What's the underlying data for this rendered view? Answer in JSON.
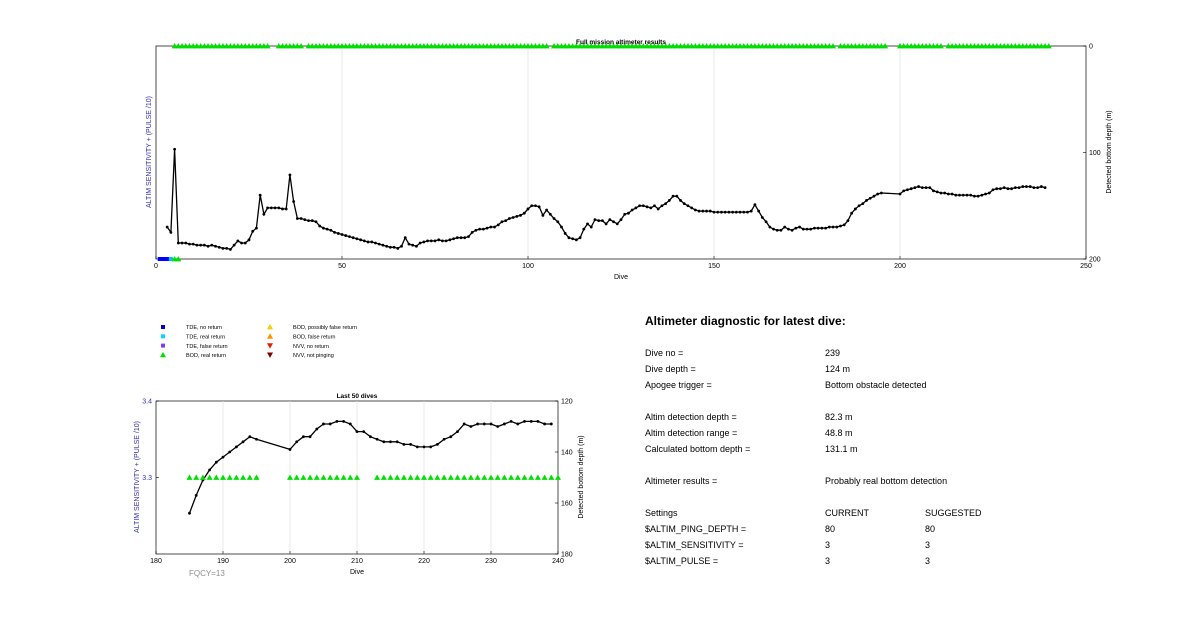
{
  "chart_data": [
    {
      "type": "line",
      "title": "Full mission altimeter results",
      "xlabel": "Dive",
      "ylabel_left": "ALTIM SENSITIVITY + (PULSE /10)",
      "ylabel_right": "Detected bottom depth (m)",
      "xlim": [
        0,
        250
      ],
      "ylim_right": [
        0,
        200
      ],
      "y_right_reversed": true,
      "xticks": [
        "0",
        "50",
        "100",
        "150",
        "200",
        "250"
      ],
      "yticks_right": [
        "0",
        "100",
        "200"
      ],
      "grid": "vertical",
      "series": [
        {
          "marker": "circle",
          "color": "#000000",
          "x": [
            3,
            4,
            5,
            6,
            7,
            8,
            9,
            10,
            11,
            12,
            13,
            14,
            15,
            16,
            17,
            18,
            19,
            20,
            21,
            22,
            23,
            24,
            25,
            26,
            27,
            28,
            29,
            30,
            31,
            32,
            33,
            34,
            35,
            36,
            37,
            38,
            39,
            40,
            41,
            42,
            43,
            44,
            45,
            46,
            47,
            48,
            49,
            50,
            51,
            52,
            53,
            54,
            55,
            56,
            57,
            58,
            59,
            60,
            61,
            62,
            63,
            64,
            65,
            66,
            67,
            68,
            69,
            70,
            71,
            72,
            73,
            74,
            75,
            76,
            77,
            78,
            79,
            80,
            81,
            82,
            83,
            84,
            85,
            86,
            87,
            88,
            89,
            90,
            91,
            92,
            93,
            94,
            95,
            96,
            97,
            98,
            99,
            100,
            101,
            102,
            103,
            104,
            105,
            106,
            107,
            108,
            109,
            110,
            111,
            112,
            113,
            114,
            115,
            116,
            117,
            118,
            119,
            120,
            121,
            122,
            123,
            124,
            125,
            126,
            127,
            128,
            129,
            130,
            131,
            132,
            133,
            134,
            135,
            136,
            137,
            138,
            139,
            140,
            141,
            142,
            143,
            144,
            145,
            146,
            147,
            148,
            149,
            150,
            151,
            152,
            153,
            154,
            155,
            156,
            157,
            158,
            159,
            160,
            161,
            162,
            163,
            164,
            165,
            166,
            167,
            168,
            169,
            170,
            171,
            172,
            173,
            174,
            175,
            176,
            177,
            178,
            179,
            180,
            181,
            182,
            183,
            184,
            185,
            186,
            187,
            188,
            189,
            190,
            191,
            192,
            193,
            194,
            195,
            200,
            201,
            202,
            203,
            204,
            205,
            206,
            207,
            208,
            209,
            210,
            211,
            212,
            213,
            214,
            215,
            216,
            217,
            218,
            219,
            220,
            221,
            222,
            223,
            224,
            225,
            226,
            227,
            228,
            229,
            230,
            231,
            232,
            233,
            234,
            235,
            236,
            237,
            238,
            239
          ],
          "y": [
            170,
            175,
            97,
            185,
            185,
            185,
            186,
            186,
            187,
            187,
            187,
            188,
            187,
            188,
            189,
            190,
            190,
            191,
            187,
            183,
            185,
            185,
            182,
            174,
            171,
            140,
            158,
            152,
            152,
            152,
            152,
            153,
            153,
            121,
            146,
            162,
            162,
            163,
            164,
            164,
            165,
            169,
            171,
            172,
            173,
            175,
            176,
            177,
            178,
            179,
            180,
            181,
            182,
            183,
            184,
            184,
            185,
            186,
            187,
            188,
            189,
            189,
            190,
            188,
            180,
            186,
            187,
            188,
            185,
            184,
            183,
            183,
            183,
            182,
            183,
            183,
            182,
            181,
            180,
            180,
            180,
            179,
            175,
            173,
            172,
            172,
            171,
            170,
            170,
            168,
            165,
            164,
            162,
            161,
            160,
            159,
            157,
            153,
            150,
            150,
            151,
            159,
            154,
            158,
            162,
            165,
            170,
            176,
            180,
            181,
            182,
            180,
            172,
            167,
            170,
            163,
            164,
            164,
            167,
            163,
            165,
            167,
            163,
            158,
            157,
            154,
            152,
            150,
            150,
            151,
            152,
            150,
            153,
            150,
            148,
            145,
            141,
            141,
            145,
            148,
            150,
            152,
            154,
            155,
            155,
            155,
            155,
            156,
            156,
            156,
            156,
            156,
            156,
            156,
            156,
            156,
            156,
            155,
            149,
            155,
            161,
            165,
            170,
            172,
            173,
            173,
            170,
            172,
            173,
            171,
            170,
            172,
            172,
            172,
            171,
            171,
            171,
            171,
            170,
            170,
            170,
            169,
            168,
            164,
            157,
            153,
            150,
            148,
            145,
            143,
            141,
            139,
            138,
            139,
            136,
            135,
            134,
            133,
            132,
            133,
            133,
            133,
            136,
            137,
            138,
            138,
            139,
            139,
            140,
            140,
            140,
            140,
            140,
            141,
            141,
            140,
            139,
            138,
            135,
            134,
            134,
            133,
            134,
            134,
            133,
            133,
            132,
            132,
            132,
            133,
            133,
            132,
            133
          ]
        }
      ],
      "markers": {
        "bod_real_return": {
          "marker": "triangle",
          "color": "#00e000",
          "y": 0,
          "x_ranges": [
            [
              5,
              30
            ],
            [
              33,
              39
            ],
            [
              41,
              105
            ],
            [
              107,
              182
            ],
            [
              184,
              196
            ],
            [
              200,
              211
            ],
            [
              213,
              240
            ]
          ]
        },
        "tde_no_return": {
          "marker": "square",
          "color": "#0000ff",
          "y": 200,
          "x": [
            1,
            2,
            3
          ]
        },
        "tde_real_return": {
          "marker": "square",
          "color": "#00c0ff",
          "y": 200,
          "x": [
            4
          ]
        },
        "bod_real_return_bottom": {
          "marker": "triangle",
          "color": "#00e000",
          "y": 200,
          "x": [
            5,
            6
          ]
        }
      }
    },
    {
      "type": "line",
      "title": "Last 50 dives",
      "xlabel": "Dive",
      "ylabel_left": "ALTIM SENSITIVITY + (PULSE /10)",
      "ylabel_right": "Detected bottom depth (m)",
      "xlim": [
        180,
        240
      ],
      "ylim_left": [
        3.2,
        3.4
      ],
      "ylim_right": [
        120,
        180
      ],
      "y_right_reversed": true,
      "xticks": [
        "180",
        "190",
        "200",
        "210",
        "220",
        "230",
        "240"
      ],
      "yticks_left": [
        "3.3",
        "3.4"
      ],
      "yticks_right": [
        "120",
        "140",
        "160",
        "180"
      ],
      "grid": "vertical",
      "annotation": "FQCY=13",
      "series": [
        {
          "marker": "circle",
          "color": "#000000",
          "x": [
            185,
            186,
            187,
            188,
            189,
            190,
            191,
            192,
            193,
            194,
            195,
            200,
            201,
            202,
            203,
            204,
            205,
            206,
            207,
            208,
            209,
            210,
            211,
            212,
            213,
            214,
            215,
            216,
            217,
            218,
            219,
            220,
            221,
            222,
            223,
            224,
            225,
            226,
            227,
            228,
            229,
            230,
            231,
            232,
            233,
            234,
            235,
            236,
            237,
            238,
            239
          ],
          "y": [
            164,
            157,
            151,
            147,
            144,
            142,
            140,
            138,
            136,
            134,
            135,
            139,
            136,
            134,
            134,
            131,
            129,
            129,
            128,
            128,
            129,
            132,
            132,
            134,
            135,
            136,
            136,
            136,
            137,
            137,
            138,
            138,
            138,
            137,
            135,
            134,
            132,
            129,
            130,
            129,
            129,
            129,
            130,
            129,
            128,
            129,
            128,
            128,
            128,
            129,
            129
          ]
        }
      ],
      "markers": {
        "bod_real_return": {
          "marker": "triangle",
          "color": "#00e000",
          "y_left": 3.3,
          "x_ranges": [
            [
              185,
              195
            ],
            [
              200,
              210
            ],
            [
              213,
              240
            ]
          ]
        }
      }
    }
  ],
  "legend": [
    {
      "label": "TDE, no return",
      "marker": "square",
      "color": "#0000c8"
    },
    {
      "label": "TDE, real return",
      "marker": "square",
      "color": "#00d8ff"
    },
    {
      "label": "TDE, false return",
      "marker": "square",
      "color": "#7a3cff"
    },
    {
      "label": "BOD, real return",
      "marker": "triangle",
      "color": "#00e000"
    },
    {
      "label": "BOD, possibly false return",
      "marker": "triangle",
      "color": "#f0d000"
    },
    {
      "label": "BOD, false return",
      "marker": "triangle",
      "color": "#ff9000"
    },
    {
      "label": "NVV, no return",
      "marker": "triangle-down",
      "color": "#e02000"
    },
    {
      "label": "NVV, not pinging",
      "marker": "triangle-down",
      "color": "#800000"
    }
  ],
  "diagnostic": {
    "title": "Altimeter diagnostic for latest dive:",
    "rows": [
      {
        "label": "Dive no =",
        "value": "239"
      },
      {
        "label": "Dive depth =",
        "value": "124 m"
      },
      {
        "label": "Apogee trigger =",
        "value": "Bottom obstacle detected"
      },
      {
        "label": "Altim detection depth =",
        "value": "82.3 m"
      },
      {
        "label": "Altim detection range =",
        "value": "48.8 m"
      },
      {
        "label": "Calculated bottom depth =",
        "value": "131.1 m"
      },
      {
        "label": "Altimeter results =",
        "value": "Probably real bottom detection"
      }
    ],
    "settings_header": {
      "label": "Settings",
      "current": "CURRENT",
      "suggested": "SUGGESTED"
    },
    "settings": [
      {
        "label": "$ALTIM_PING_DEPTH =",
        "current": "80",
        "suggested": "80"
      },
      {
        "label": "$ALTIM_SENSITIVITY =",
        "current": "3",
        "suggested": "3"
      },
      {
        "label": "$ALTIM_PULSE =",
        "current": "3",
        "suggested": "3"
      }
    ]
  }
}
